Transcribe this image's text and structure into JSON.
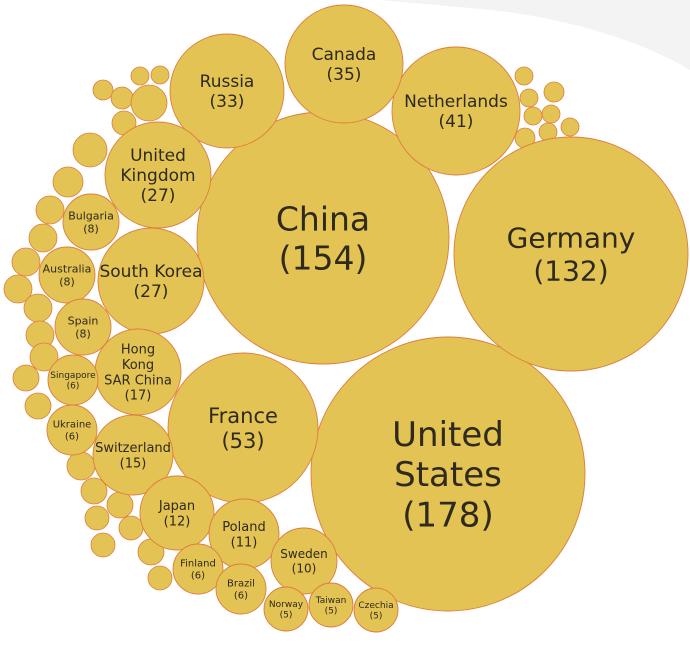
{
  "chart_data": {
    "type": "bubble",
    "colors": {
      "bubble_fill": "#E3C353",
      "bubble_stroke": "#E07C3E",
      "label": "#2E2A1E",
      "background_swoosh": "#F3F3F3"
    },
    "series": [
      {
        "name": "United States",
        "value": 178,
        "label_lines": [
          "United",
          "States",
          "(178)"
        ]
      },
      {
        "name": "China",
        "value": 154,
        "label_lines": [
          "China",
          "(154)"
        ]
      },
      {
        "name": "Germany",
        "value": 132,
        "label_lines": [
          "Germany",
          "(132)"
        ]
      },
      {
        "name": "France",
        "value": 53,
        "label_lines": [
          "France",
          "(53)"
        ]
      },
      {
        "name": "Netherlands",
        "value": 41,
        "label_lines": [
          "Netherlands",
          "(41)"
        ]
      },
      {
        "name": "Canada",
        "value": 35,
        "label_lines": [
          "Canada",
          "(35)"
        ]
      },
      {
        "name": "Russia",
        "value": 33,
        "label_lines": [
          "Russia",
          "(33)"
        ]
      },
      {
        "name": "United Kingdom",
        "value": 27,
        "label_lines": [
          "United",
          "Kingdom",
          "(27)"
        ]
      },
      {
        "name": "South Korea",
        "value": 27,
        "label_lines": [
          "South Korea",
          "(27)"
        ]
      },
      {
        "name": "Hong Kong SAR China",
        "value": 17,
        "label_lines": [
          "Hong",
          "Kong",
          "SAR China",
          "(17)"
        ]
      },
      {
        "name": "Switzerland",
        "value": 15,
        "label_lines": [
          "Switzerland",
          "(15)"
        ]
      },
      {
        "name": "Japan",
        "value": 12,
        "label_lines": [
          "Japan",
          "(12)"
        ]
      },
      {
        "name": "Poland",
        "value": 11,
        "label_lines": [
          "Poland",
          "(11)"
        ]
      },
      {
        "name": "Sweden",
        "value": 10,
        "label_lines": [
          "Sweden",
          "(10)"
        ]
      },
      {
        "name": "Bulgaria",
        "value": 8,
        "label_lines": [
          "Bulgaria",
          "(8)"
        ]
      },
      {
        "name": "Australia",
        "value": 8,
        "label_lines": [
          "Australia",
          "(8)"
        ]
      },
      {
        "name": "Spain",
        "value": 8,
        "label_lines": [
          "Spain",
          "(8)"
        ]
      },
      {
        "name": "Singapore",
        "value": 6,
        "label_lines": [
          "Singapore",
          "(6)"
        ]
      },
      {
        "name": "Ukraine",
        "value": 6,
        "label_lines": [
          "Ukraine",
          "(6)"
        ]
      },
      {
        "name": "Finland",
        "value": 6,
        "label_lines": [
          "Finland",
          "(6)"
        ]
      },
      {
        "name": "Brazil",
        "value": 6,
        "label_lines": [
          "Brazil",
          "(6)"
        ]
      },
      {
        "name": "Norway",
        "value": 5,
        "label_lines": [
          "Norway",
          "(5)"
        ]
      },
      {
        "name": "Taiwan",
        "value": 5,
        "label_lines": [
          "Taiwan",
          "(5)"
        ]
      },
      {
        "name": "Czechia",
        "value": 5,
        "label_lines": [
          "Czechia",
          "(5)"
        ]
      }
    ]
  }
}
